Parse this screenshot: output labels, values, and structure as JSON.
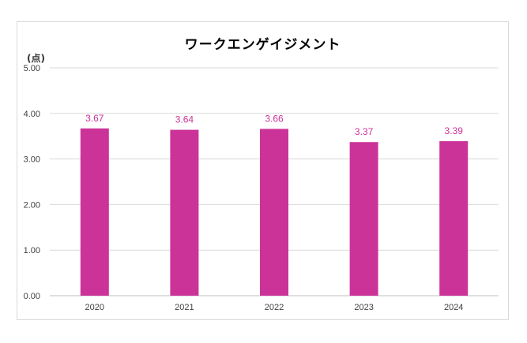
{
  "chart_data": {
    "type": "bar",
    "title": "ワークエンゲイジメント",
    "ylabel": "(点)",
    "xlabel": "",
    "categories": [
      "2020",
      "2021",
      "2022",
      "2023",
      "2024"
    ],
    "values": [
      3.67,
      3.64,
      3.66,
      3.37,
      3.39
    ],
    "data_labels": [
      "3.67",
      "3.64",
      "3.66",
      "3.37",
      "3.39"
    ],
    "ylim": [
      0,
      5
    ],
    "yticks": [
      "0.00",
      "1.00",
      "2.00",
      "3.00",
      "4.00",
      "5.00"
    ],
    "grid": true,
    "legend": "none",
    "bar_color": "#cc3399",
    "label_color": "#cc3399"
  }
}
